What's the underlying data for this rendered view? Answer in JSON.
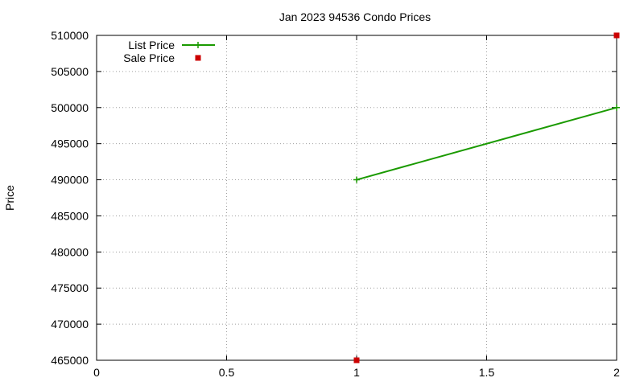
{
  "chart_data": {
    "type": "line",
    "title": "Jan 2023 94536 Condo Prices",
    "xlabel": "",
    "ylabel": "Price",
    "xlim": [
      0,
      2
    ],
    "ylim": [
      465000,
      510000
    ],
    "x_ticks": [
      "0",
      "0.5",
      "1",
      "1.5",
      "2"
    ],
    "y_ticks": [
      "465000",
      "470000",
      "475000",
      "480000",
      "485000",
      "490000",
      "495000",
      "500000",
      "505000",
      "510000"
    ],
    "grid": true,
    "legend_position": "top-left",
    "series": [
      {
        "name": "List Price",
        "style": "line-with-plus-markers",
        "color": "#1a9a00",
        "points": [
          {
            "x": 1,
            "y": 490000
          },
          {
            "x": 2,
            "y": 500000
          }
        ]
      },
      {
        "name": "Sale Price",
        "style": "square-markers",
        "color": "#cc0000",
        "points": [
          {
            "x": 1,
            "y": 465000
          },
          {
            "x": 2,
            "y": 510000
          }
        ]
      }
    ]
  }
}
